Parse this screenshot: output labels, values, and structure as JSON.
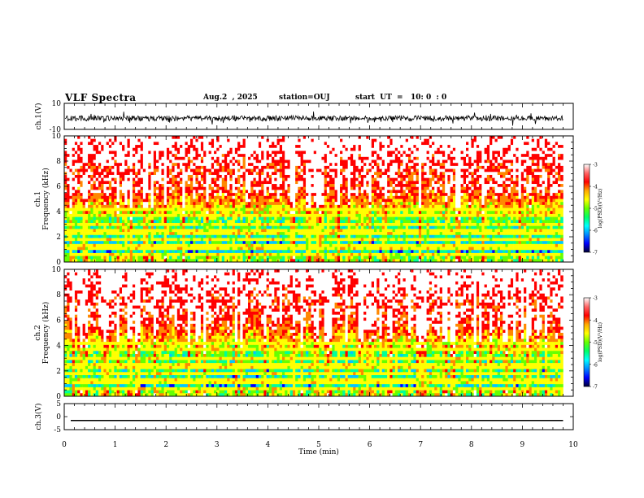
{
  "header": {
    "title": "VLF Spectra",
    "date": "Aug.2  , 2025",
    "station": "station=OUJ",
    "start_ut": "start  UT  =   10: 0  : 0"
  },
  "chart_data": [
    {
      "type": "line",
      "panel": "waveform-ch1",
      "ylabel": "ch.1(V)",
      "ytick_labels": [
        "10",
        "-10"
      ],
      "ylim": [
        -10,
        10
      ],
      "xlim": [
        0,
        10
      ],
      "data_end_min": 9.8,
      "trace_level_V": -1.5,
      "trace_amplitude_V": 4
    },
    {
      "type": "heatmap",
      "panel": "spectrogram-ch1",
      "ylabel_channel": "ch.1",
      "ylabel": "Frequency  (kHz)",
      "ytick_labels": [
        "0",
        "2",
        "4",
        "6",
        "8",
        "10"
      ],
      "ylim": [
        0,
        10
      ],
      "xlim": [
        0,
        10
      ],
      "data_end_min": 9.8,
      "colorbar": {
        "label": "log(PSD)(V²/Hz)",
        "tick_labels": [
          "-3",
          "-4",
          "-5",
          "-6",
          "-7"
        ],
        "range": [
          -7,
          -3
        ]
      }
    },
    {
      "type": "heatmap",
      "panel": "spectrogram-ch2",
      "ylabel_channel": "ch.2",
      "ylabel": "Frequency  (kHz)",
      "ytick_labels": [
        "0",
        "2",
        "4",
        "6",
        "8",
        "10"
      ],
      "ylim": [
        0,
        10
      ],
      "xlim": [
        0,
        10
      ],
      "data_end_min": 9.8,
      "colorbar": {
        "label": "log(PSD)(V²/Hz)",
        "tick_labels": [
          "-3",
          "-4",
          "-5",
          "-6",
          "-7"
        ],
        "range": [
          -7,
          -3
        ]
      }
    },
    {
      "type": "line",
      "panel": "waveform-ch3",
      "ylabel": "ch.3(V)",
      "ytick_labels": [
        "5",
        "0",
        "-5"
      ],
      "ylim": [
        -5,
        5
      ],
      "xlim": [
        0,
        10
      ],
      "data_end_min": 9.8,
      "trace_level_V": -1.5
    }
  ],
  "x_axis": {
    "label": "Time  (min)",
    "tick_labels": [
      "0",
      "1",
      "2",
      "3",
      "4",
      "5",
      "6",
      "7",
      "8",
      "9",
      "10"
    ]
  },
  "colors": {
    "colormap": [
      "#000066",
      "#0000ff",
      "#00c8ff",
      "#00ff99",
      "#66ff00",
      "#ffff00",
      "#ff8800",
      "#ff0000",
      "#ffffff"
    ],
    "trace": "#000000"
  }
}
